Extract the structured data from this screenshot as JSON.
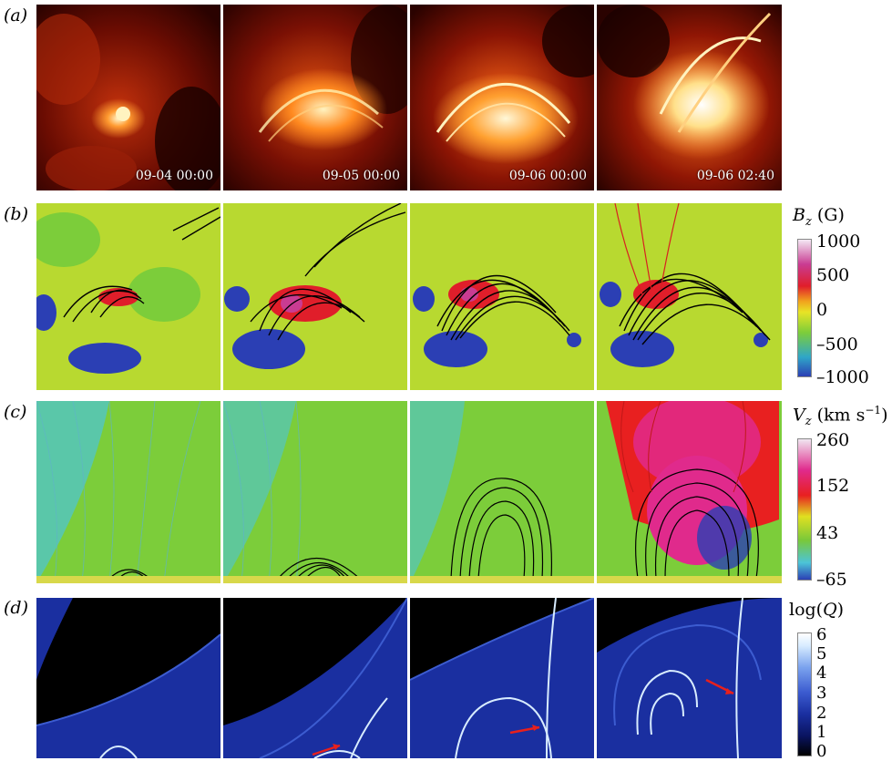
{
  "rows": {
    "a": {
      "label": "(a)",
      "timestamps": [
        "09-04 00:00",
        "09-05 00:00",
        "09-06 00:00",
        "09-06 02:40"
      ]
    },
    "b": {
      "label": "(b)",
      "colorbar": {
        "title_symbol": "B",
        "title_sub": "z",
        "title_unit": " (G)",
        "ticks": [
          "1000",
          "500",
          "0",
          "–500",
          "–1000"
        ]
      }
    },
    "c": {
      "label": "(c)",
      "colorbar": {
        "title_symbol": "V",
        "title_sub": "z",
        "title_unit": " (km s",
        "title_sup": "−1",
        "title_close": ")",
        "ticks": [
          "260",
          "152",
          "43",
          "–65"
        ]
      }
    },
    "d": {
      "label": "(d)",
      "colorbar": {
        "title_prefix": "log(",
        "title_symbol": "Q",
        "title_close": ")",
        "ticks": [
          "6",
          "5",
          "4",
          "3",
          "2",
          "1",
          "0"
        ]
      }
    }
  },
  "colors": {
    "aia_dark": "#2a0200",
    "aia_red": "#a01808",
    "aia_bright": "#fff3c0",
    "bz_ramp": [
      "#2b3fb4",
      "#2fa6c8",
      "#7ccd3a",
      "#e8e426",
      "#f1a21d",
      "#e01e2a",
      "#c93c92",
      "#f4e8f4"
    ],
    "vz_ramp": [
      "#2b3fb4",
      "#4cc4d8",
      "#79c83a",
      "#e0e020",
      "#e82020",
      "#e02a8c",
      "#f0e6f0"
    ],
    "q_ramp": [
      "#000000",
      "#0a1460",
      "#1a2fa0",
      "#3c5cd0",
      "#7aa2ee",
      "#d8ecff"
    ],
    "arrow": "#e8201c"
  }
}
